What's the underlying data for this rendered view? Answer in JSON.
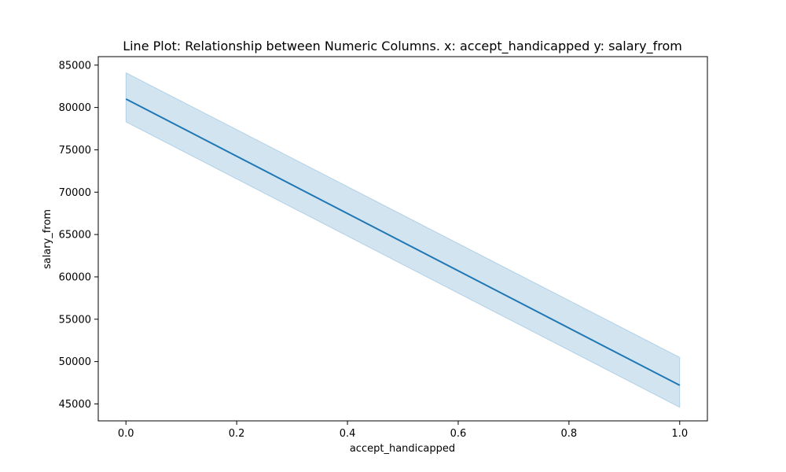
{
  "chart_data": {
    "type": "line",
    "title": "Line Plot: Relationship between Numeric Columns. x: accept_handicapped y: salary_from",
    "xlabel": "accept_handicapped",
    "ylabel": "salary_from",
    "xlim": [
      -0.05,
      1.05
    ],
    "ylim": [
      43000,
      86000
    ],
    "xticks": [
      0.0,
      0.2,
      0.4,
      0.6,
      0.8,
      1.0
    ],
    "xtick_labels": [
      "0.0",
      "0.2",
      "0.4",
      "0.6",
      "0.8",
      "1.0"
    ],
    "yticks": [
      45000,
      50000,
      55000,
      60000,
      65000,
      70000,
      75000,
      80000,
      85000
    ],
    "ytick_labels": [
      "45000",
      "50000",
      "55000",
      "60000",
      "65000",
      "70000",
      "75000",
      "80000",
      "85000"
    ],
    "grid": false,
    "series": [
      {
        "x": [
          0.0,
          1.0
        ],
        "y": [
          81000,
          47200
        ],
        "ci_lower": [
          78300,
          44600
        ],
        "ci_upper": [
          84100,
          50500
        ],
        "color": "#1f77b4",
        "band_color": "#1f77b4"
      }
    ]
  }
}
